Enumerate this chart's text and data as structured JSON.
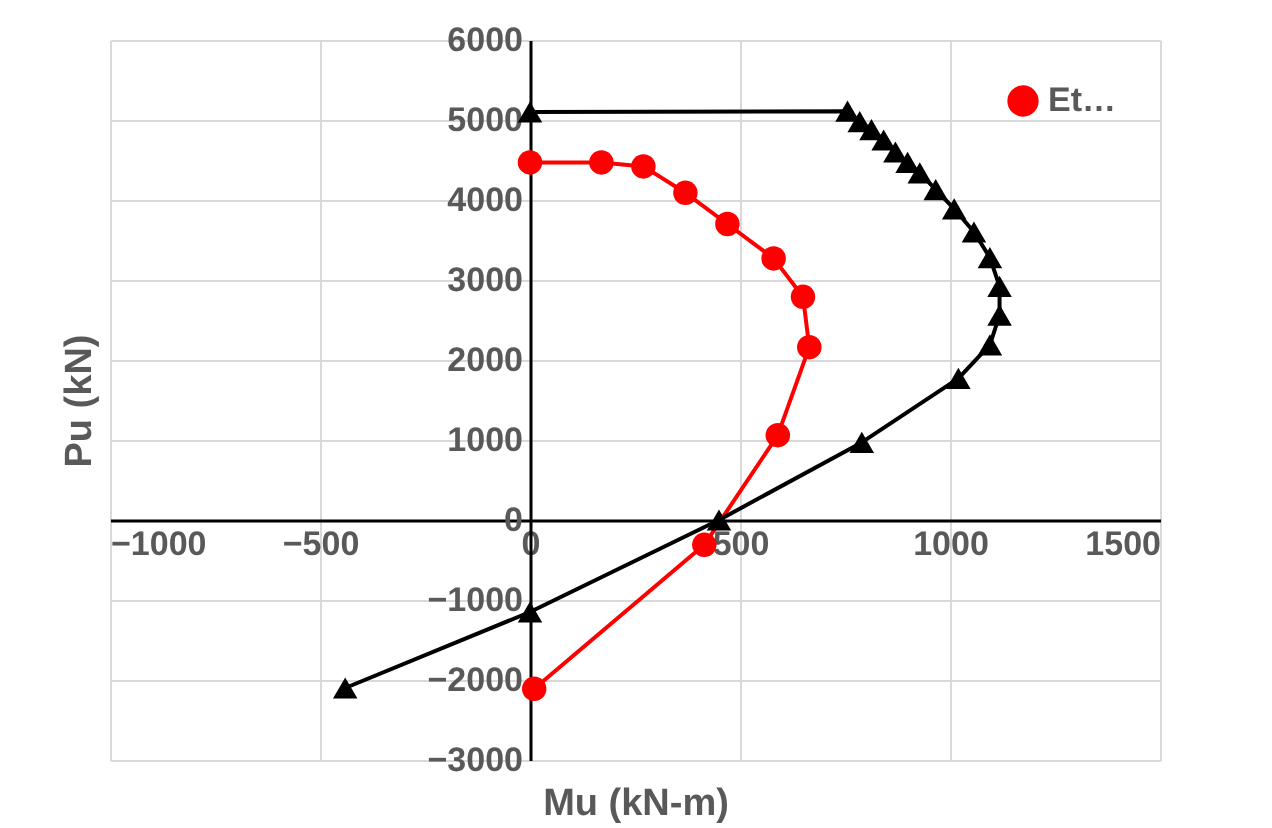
{
  "chart_data": {
    "type": "line",
    "xlabel": "Mu (kN-m)",
    "ylabel": "Pu (kN)",
    "xlim": [
      -1000,
      1500
    ],
    "xticks": [
      -1000,
      -500,
      0,
      500,
      1000,
      1500
    ],
    "ylim": [
      -3000,
      6000
    ],
    "yticks": [
      -3000,
      -2000,
      -1000,
      0,
      1000,
      2000,
      3000,
      4000,
      5000,
      6000
    ],
    "grid": true,
    "legend": "top right",
    "line_style": "solid",
    "series": [
      {
        "name": "Et…",
        "color": "#ff0000",
        "marker": "circle",
        "x": [
          0,
          170,
          270,
          370,
          470,
          580,
          650,
          665,
          590,
          415,
          10
        ],
        "values": [
          4470,
          4470,
          4420,
          4090,
          3700,
          3270,
          2790,
          2160,
          1060,
          -310,
          -2110
        ]
      },
      {
        "color": "#000000",
        "marker": "triangle",
        "x": [
          0,
          756,
          785,
          813,
          842,
          870,
          899,
          928,
          966,
          1010,
          1057,
          1095,
          1118,
          1118,
          1095,
          1020,
          790,
          450,
          0,
          -440
        ],
        "values": [
          5100,
          5110,
          4980,
          4880,
          4750,
          4600,
          4470,
          4340,
          4130,
          3890,
          3600,
          3280,
          2920,
          2560,
          2190,
          1770,
          970,
          0,
          -1150,
          -2100
        ]
      }
    ]
  }
}
